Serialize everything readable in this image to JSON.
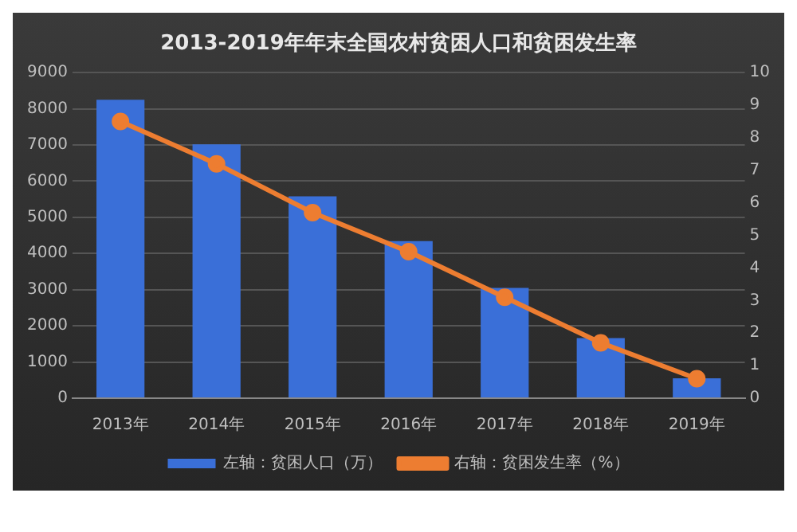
{
  "chart_data": {
    "type": "bar",
    "title": "2013-2019年年末全国农村贫困人口和贫困发生率",
    "categories": [
      "2013年",
      "2014年",
      "2015年",
      "2016年",
      "2017年",
      "2018年",
      "2019年"
    ],
    "series": [
      {
        "name": "左轴：贫困人口（万）",
        "color": "#3a6fd8",
        "values": [
          8250,
          7020,
          5580,
          4340,
          3050,
          1660,
          550
        ]
      },
      {
        "name": "右轴：贫困发生率（%）",
        "type": "line",
        "axis": "y2",
        "color": "#ed7d31",
        "values": [
          8.5,
          7.2,
          5.7,
          4.5,
          3.1,
          1.7,
          0.6
        ]
      }
    ],
    "ylim": [
      0,
      9000
    ],
    "yticks": [
      0,
      1000,
      2000,
      3000,
      4000,
      5000,
      6000,
      7000,
      8000,
      9000
    ],
    "y2lim": [
      0,
      10
    ],
    "y2ticks": [
      0,
      1,
      2,
      3,
      4,
      5,
      6,
      7,
      8,
      9,
      10
    ],
    "grid": "y",
    "legend": "bottom",
    "marker": "circle"
  }
}
